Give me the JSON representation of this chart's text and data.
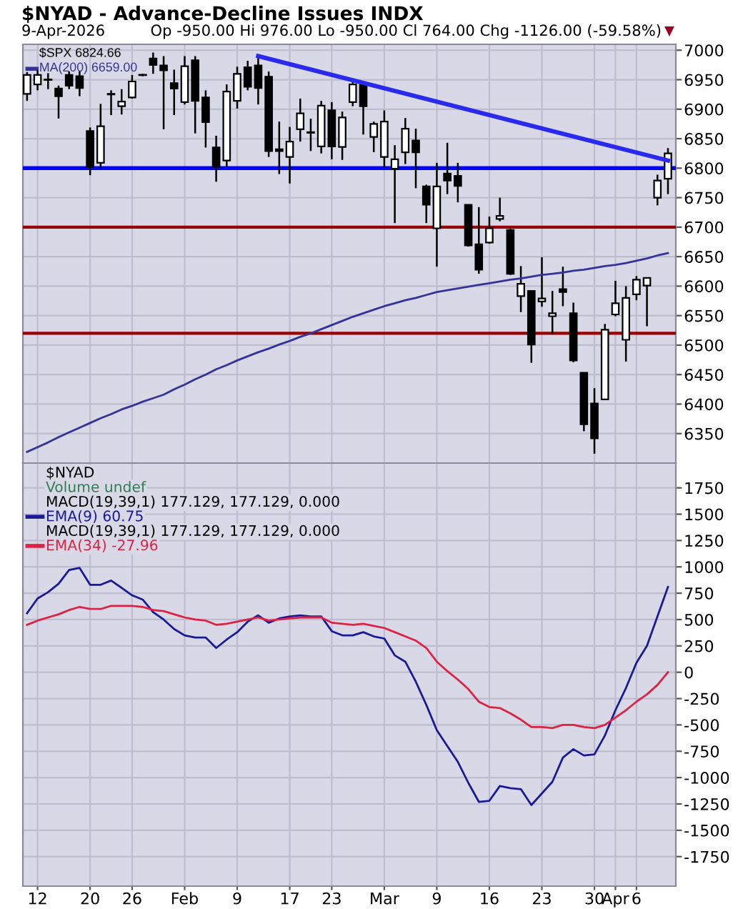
{
  "chart_data": [
    {
      "type": "candlestick",
      "title": "$NYAD - Advance-Decline Issues INDX",
      "subtitle": "Op -950.00 Hi 976.00 Lo -950.00 Cl 764.00 Chg -1126.00 (-59.58%)",
      "annotations": [
        "9-Apr-2026",
        "$SPX 6824.66",
        "▼"
      ],
      "categories": [
        null,
        null,
        null,
        null,
        null,
        null,
        null,
        null,
        null,
        null,
        null,
        null,
        null,
        null,
        null,
        null,
        null,
        null,
        null,
        null,
        null,
        null,
        null,
        null,
        null,
        null,
        null,
        null,
        null,
        null,
        null,
        null,
        null,
        null,
        null,
        null,
        null,
        null,
        null,
        null,
        null,
        null,
        null,
        null,
        null,
        null,
        null,
        null,
        null,
        null,
        null,
        null,
        null,
        null,
        null,
        null,
        null,
        null,
        null,
        null,
        null,
        null
      ],
      "ohlc": [
        [
          6926,
          6963,
          6914,
          6958
        ],
        [
          6942,
          6966,
          6932,
          6958
        ],
        [
          6950,
          6961,
          6934,
          6950
        ],
        [
          6935,
          6940,
          6884,
          6922
        ],
        [
          6958,
          6964,
          6934,
          6940
        ],
        [
          6956,
          6964,
          6922,
          6936
        ],
        [
          6863,
          6869,
          6788,
          6802
        ],
        [
          6809,
          6909,
          6799,
          6871
        ],
        [
          6926,
          6932,
          6890,
          6925
        ],
        [
          6905,
          6934,
          6891,
          6913
        ],
        [
          6920,
          6958,
          6918,
          6947
        ],
        [
          6958,
          6960,
          6956,
          6958
        ],
        [
          6986,
          6996,
          6960,
          6975
        ],
        [
          6974,
          6990,
          6866,
          6966
        ],
        [
          6944,
          6967,
          6890,
          6935
        ],
        [
          6912,
          6990,
          6908,
          6973
        ],
        [
          6983,
          6990,
          6859,
          6914
        ],
        [
          6920,
          6932,
          6835,
          6878
        ],
        [
          6835,
          6855,
          6777,
          6802
        ],
        [
          6813,
          6942,
          6802,
          6930
        ],
        [
          6914,
          6972,
          6901,
          6960
        ],
        [
          6971,
          6982,
          6932,
          6938
        ],
        [
          6974,
          6990,
          6908,
          6936
        ],
        [
          6955,
          6964,
          6819,
          6829
        ],
        [
          6832,
          6879,
          6790,
          6829
        ],
        [
          6819,
          6870,
          6774,
          6845
        ],
        [
          6866,
          6918,
          6845,
          6893
        ],
        [
          6860,
          6884,
          6829,
          6861
        ],
        [
          6837,
          6914,
          6825,
          6906
        ],
        [
          6898,
          6912,
          6815,
          6837
        ],
        [
          6836,
          6896,
          6814,
          6886
        ],
        [
          6912,
          6948,
          6905,
          6942
        ],
        [
          6942,
          6944,
          6857,
          6905
        ],
        [
          6853,
          6879,
          6827,
          6875
        ],
        [
          6819,
          6898,
          6801,
          6879
        ],
        [
          6799,
          6839,
          6707,
          6815
        ],
        [
          6827,
          6885,
          6807,
          6867
        ],
        [
          6847,
          6867,
          6766,
          6827
        ],
        [
          6769,
          6772,
          6707,
          6738
        ],
        [
          6698,
          6809,
          6633,
          6769
        ],
        [
          6791,
          6843,
          6756,
          6779
        ],
        [
          6787,
          6809,
          6742,
          6770
        ],
        [
          6738,
          6738,
          6667,
          6669
        ],
        [
          6671,
          6734,
          6621,
          6628
        ],
        [
          6674,
          6718,
          6672,
          6698
        ],
        [
          6714,
          6750,
          6710,
          6719
        ],
        [
          6695,
          6697,
          6619,
          6621
        ],
        [
          6583,
          6634,
          6556,
          6604
        ],
        [
          6592,
          6592,
          6470,
          6501
        ],
        [
          6574,
          6649,
          6565,
          6579
        ],
        [
          6549,
          6592,
          6519,
          6554
        ],
        [
          6595,
          6633,
          6566,
          6590
        ],
        [
          6554,
          6572,
          6471,
          6474
        ],
        [
          6453,
          6453,
          6354,
          6366
        ],
        [
          6401,
          6427,
          6316,
          6342
        ],
        [
          6408,
          6536,
          6408,
          6526
        ],
        [
          6552,
          6609,
          6549,
          6571
        ],
        [
          6509,
          6600,
          6472,
          6580
        ],
        [
          6586,
          6617,
          6576,
          6611
        ],
        [
          6601,
          6614,
          6532,
          6614
        ],
        [
          6750,
          6789,
          6737,
          6779
        ],
        [
          6782,
          6834,
          6756,
          6825
        ]
      ],
      "series": [
        {
          "name": "MA(200) 6659.00",
          "type": "line",
          "color": "#333399",
          "values": [
            6319,
            6327,
            6335,
            6344,
            6352,
            6360,
            6368,
            6376,
            6383,
            6391,
            6397,
            6404,
            6410,
            6416,
            6425,
            6433,
            6442,
            6450,
            6459,
            6466,
            6474,
            6481,
            6488,
            6494,
            6501,
            6507,
            6514,
            6520,
            6527,
            6534,
            6541,
            6548,
            6554,
            6560,
            6566,
            6571,
            6576,
            6580,
            6585,
            6590,
            6593,
            6596,
            6599,
            6602,
            6605,
            6608,
            6611,
            6613,
            6616,
            6619,
            6621,
            6623,
            6626,
            6628,
            6631,
            6634,
            6636,
            6639,
            6643,
            6647,
            6652,
            6656
          ]
        },
        {
          "type": "line",
          "color": "#2a2aee",
          "values": [
            null,
            null,
            null,
            null,
            null,
            null,
            null,
            null,
            null,
            null,
            null,
            null,
            null,
            null,
            null,
            null,
            null,
            null,
            null,
            null,
            null,
            null,
            6990,
            null,
            null,
            null,
            null,
            null,
            null,
            null,
            null,
            null,
            null,
            null,
            null,
            null,
            null,
            null,
            null,
            null,
            null,
            null,
            null,
            null,
            null,
            null,
            null,
            null,
            null,
            null,
            null,
            null,
            null,
            null,
            null,
            null,
            null,
            null,
            null,
            null,
            null,
            6813
          ]
        }
      ],
      "ref_lines": [
        {
          "axis": "y",
          "value": 6800,
          "color": "#0000ff"
        },
        {
          "axis": "y",
          "value": 6700,
          "color": "#990000"
        },
        {
          "axis": "y",
          "value": 6520,
          "color": "#990000"
        }
      ],
      "ylim": [
        6300,
        7010
      ],
      "yticks": [
        6350,
        6400,
        6450,
        6500,
        6550,
        6600,
        6650,
        6700,
        6750,
        6800,
        6850,
        6900,
        6950,
        7000
      ],
      "grid": true,
      "legend": "top left",
      "tick_labels": "y"
    },
    {
      "type": "line",
      "annotations": [
        "$NYAD",
        "Volume undef",
        "MACD(19,39,1) 177.129, 177.129, 0.000",
        "MACD(19,39,1) 177.129, 177.129, 0.000"
      ],
      "categories": [
        null,
        "12",
        null,
        null,
        null,
        null,
        "20",
        null,
        null,
        null,
        "26",
        null,
        null,
        null,
        null,
        "Feb",
        null,
        null,
        null,
        null,
        "9",
        null,
        null,
        null,
        null,
        "17",
        null,
        null,
        null,
        "23",
        null,
        null,
        null,
        null,
        "Mar",
        null,
        null,
        null,
        null,
        "9",
        null,
        null,
        null,
        null,
        "16",
        null,
        null,
        null,
        null,
        "23",
        null,
        null,
        null,
        null,
        "30",
        null,
        "Apr",
        null,
        "6",
        null,
        null,
        null
      ],
      "series": [
        {
          "name": "EMA(9) 60.75",
          "color": "#1a1a99",
          "values": [
            560,
            700,
            760,
            840,
            970,
            990,
            830,
            830,
            870,
            800,
            730,
            690,
            570,
            500,
            410,
            350,
            330,
            330,
            230,
            310,
            380,
            480,
            540,
            470,
            510,
            530,
            540,
            530,
            530,
            390,
            350,
            350,
            380,
            340,
            320,
            160,
            100,
            -90,
            -310,
            -550,
            -700,
            -850,
            -1050,
            -1230,
            -1220,
            -1080,
            -1100,
            -1110,
            -1260,
            -1150,
            -1040,
            -810,
            -730,
            -790,
            -780,
            -600,
            -360,
            -150,
            90,
            250,
            530,
            810
          ]
        },
        {
          "name": "EMA(34) -27.96",
          "color": "#dd2244",
          "values": [
            450,
            490,
            520,
            550,
            590,
            620,
            600,
            600,
            630,
            630,
            630,
            620,
            590,
            580,
            550,
            520,
            500,
            490,
            450,
            460,
            480,
            500,
            520,
            490,
            500,
            510,
            520,
            520,
            520,
            470,
            460,
            450,
            460,
            440,
            420,
            380,
            340,
            300,
            230,
            100,
            10,
            -70,
            -160,
            -280,
            -330,
            -340,
            -390,
            -450,
            -520,
            -520,
            -530,
            -500,
            -500,
            -520,
            -530,
            -500,
            -430,
            -360,
            -280,
            -210,
            -120,
            0
          ]
        }
      ],
      "ylim": [
        -2030,
        1985
      ],
      "yticks": [
        -1750,
        -1500,
        -1250,
        -1000,
        -750,
        -500,
        -250,
        0,
        250,
        500,
        750,
        1000,
        1250,
        1500,
        1750
      ],
      "grid": true,
      "legend": "top left"
    }
  ]
}
